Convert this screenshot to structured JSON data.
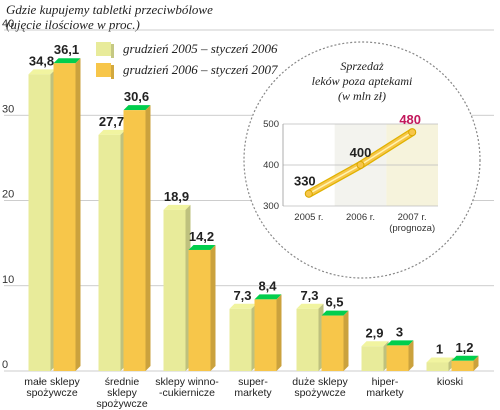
{
  "chart_data": [
    {
      "type": "bar",
      "title": "Gdzie kupujemy tabletki przeciwbólowe",
      "subtitle": "(ujęcie ilościowe w proc.)",
      "ylim": [
        0,
        40
      ],
      "yticks": [
        "0",
        "10",
        "20",
        "30",
        "40"
      ],
      "grid": true,
      "legend_position": "top",
      "categories": [
        [
          "małe sklepy",
          "spożywcze"
        ],
        [
          "średnie",
          "sklepy",
          "spożywcze"
        ],
        [
          "sklepy winno-",
          "-cukiernicze"
        ],
        [
          "super-",
          "markety"
        ],
        [
          "duże sklepy",
          "spożywcze"
        ],
        [
          "hiper-",
          "markety"
        ],
        [
          "kioski"
        ]
      ],
      "series": [
        {
          "name": "grudzień 2005 – styczeń 2006",
          "color": "#e8eb9a",
          "values": [
            34.8,
            27.7,
            18.9,
            7.3,
            7.3,
            2.9,
            1
          ],
          "labels": [
            "34,8",
            "27,7",
            "18,9",
            "7,3",
            "7,3",
            "2,9",
            "1"
          ]
        },
        {
          "name": "grudzień 2006 – styczeń 2007",
          "color": "#f7c64a",
          "values": [
            36.1,
            30.6,
            14.2,
            8.4,
            6.5,
            3,
            1.2
          ],
          "labels": [
            "36,1",
            "30,6",
            "14,2",
            "8,4",
            "6,5",
            "3",
            "1,2"
          ]
        }
      ]
    },
    {
      "type": "line",
      "title_lines": [
        "Sprzedaż",
        "leków poza aptekami",
        "(w mln zł)"
      ],
      "ylim": [
        300,
        500
      ],
      "yticks": [
        "300",
        "400",
        "500"
      ],
      "x": [
        [
          "2005 r."
        ],
        [
          "2006 r."
        ],
        [
          "2007 r.",
          "(prognoza)"
        ]
      ],
      "values": [
        330,
        400,
        480
      ],
      "labels": [
        "330",
        "400",
        "480"
      ],
      "highlight_color": "#c2185b"
    }
  ]
}
